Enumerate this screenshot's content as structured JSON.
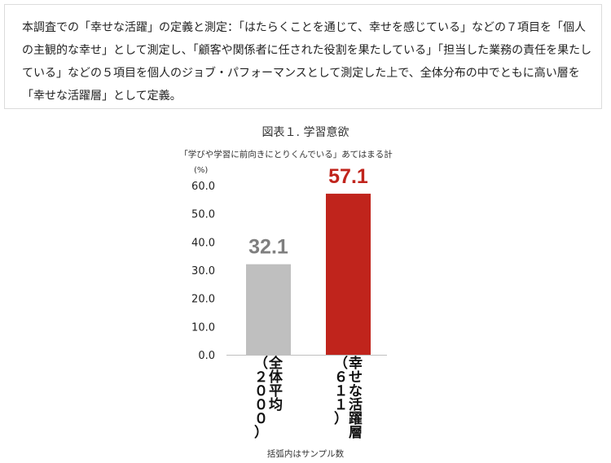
{
  "description_box": {
    "text": "本調査での「幸せな活躍」の定義と測定：「はたらくことを通じて、幸せを感じている」などの７項目を「個人の主観的な幸せ」として測定し、「顧客や関係者に任された役割を果たしている」「担当した業務の責任を果たしている」などの５項目を個人のジョブ・パフォーマンスとして測定した上で、全体分布の中でともに高い層を「幸せな活躍層」として定義。"
  },
  "chart_data": {
    "type": "bar",
    "title": "図表１. 学習意欲",
    "subtitle": "「学びや学習に前向きにとりくんでいる」あてはまる計",
    "unit": "(%)",
    "ylim": [
      0,
      60
    ],
    "yticks": [
      "0.0",
      "10.0",
      "20.0",
      "30.0",
      "40.0",
      "50.0",
      "60.0"
    ],
    "categories": [
      {
        "name": "全体平均",
        "sample": "（２０００）",
        "value": 32.1,
        "label": "32.1",
        "color": "#bfbfbf",
        "label_color": "#7f7f7f"
      },
      {
        "name": "幸せな活躍層",
        "sample": "（６１１）",
        "value": 57.1,
        "label": "57.1",
        "color": "#c0241c",
        "label_color": "#c0241c"
      }
    ],
    "footnote": "括弧内はサンプル数"
  }
}
